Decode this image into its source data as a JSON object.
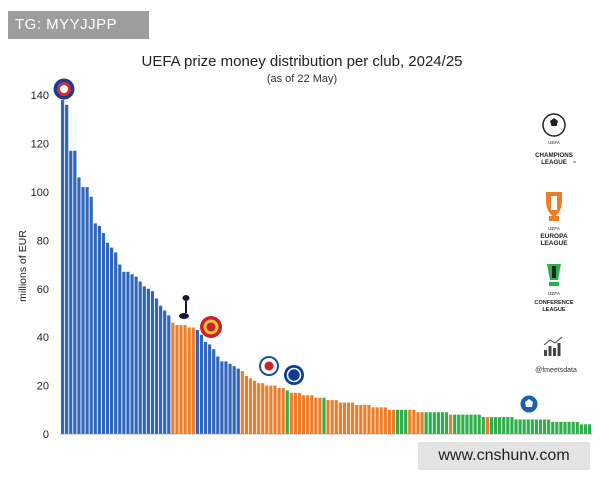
{
  "watermarks": {
    "top": "TG: MYYJJPP",
    "bottom": "www.cnshunv.com"
  },
  "legend": {
    "cl": {
      "top": "UEFA",
      "main": [
        "CHAMPIONS",
        "LEAGUE"
      ],
      "tm": "™",
      "color": "#2f66b9"
    },
    "el": {
      "top": "UEFA",
      "main": [
        "EUROPA",
        "LEAGUE"
      ],
      "color": "#ee7d2a"
    },
    "ecl": {
      "top": "UEFA",
      "main": [
        "CONFERENCE",
        "LEAGUE"
      ],
      "color": "#2fae4c"
    },
    "credit": "@fmeetsdata"
  },
  "club_markers": [
    "PSG",
    "Tottenham Hotspur",
    "Manchester United",
    "Viktoria Plzeň",
    "Chelsea",
    "Vitória SC"
  ],
  "chart_data": {
    "type": "bar",
    "title": "UEFA prize money distribution per club, 2024/25",
    "subtitle": "(as of 22 May)",
    "ylabel": "millions of EUR",
    "xlabel": "",
    "ylim": [
      0,
      145
    ],
    "yticks": [
      0,
      20,
      40,
      60,
      80,
      100,
      120,
      140
    ],
    "grid": false,
    "series": [
      {
        "name": "Champions League",
        "color": "#2f66b9",
        "values": [
          138,
          136,
          117,
          117,
          106,
          102,
          102,
          98,
          87,
          86,
          83,
          79,
          77,
          75,
          70,
          67,
          67,
          66,
          65,
          63,
          61,
          60,
          59,
          56,
          53,
          51,
          49
        ]
      },
      {
        "name": "Europa League",
        "color": "#ee7d2a",
        "values": [
          46,
          45,
          45,
          45,
          44,
          44
        ]
      },
      {
        "name": "Champions League",
        "color": "#2f66b9",
        "values": [
          43,
          41,
          38,
          37,
          35,
          32,
          30,
          30,
          29,
          28,
          27
        ]
      },
      {
        "name": "Europa League",
        "color": "#ee7d2a",
        "values": [
          26,
          24,
          23,
          22,
          21,
          21,
          20,
          20,
          20,
          19,
          19
        ]
      },
      {
        "name": "Conference League",
        "color": "#2fae4c",
        "values": [
          18
        ]
      },
      {
        "name": "Europa League",
        "color": "#ee7d2a",
        "values": [
          17,
          17,
          17,
          16,
          16,
          16,
          15,
          15
        ]
      },
      {
        "name": "Conference League",
        "color": "#2fae4c",
        "values": [
          15
        ]
      },
      {
        "name": "Europa League",
        "color": "#ee7d2a",
        "values": [
          14,
          14,
          14,
          13,
          13,
          13,
          13,
          12,
          12,
          12,
          12,
          11,
          11,
          11,
          11,
          10,
          10
        ]
      },
      {
        "name": "Conference League",
        "color": "#2fae4c",
        "values": [
          10,
          10,
          10
        ]
      },
      {
        "name": "Europa League",
        "color": "#ee7d2a",
        "values": [
          10,
          10,
          9,
          9
        ]
      },
      {
        "name": "Conference League",
        "color": "#2fae4c",
        "values": [
          9,
          9,
          9,
          9,
          9,
          9
        ]
      },
      {
        "name": "Europa League",
        "color": "#ee7d2a",
        "values": [
          8
        ]
      },
      {
        "name": "Conference League",
        "color": "#2fae4c",
        "values": [
          8,
          8,
          8,
          8,
          8,
          8,
          8,
          7
        ]
      },
      {
        "name": "Europa League",
        "color": "#ee7d2a",
        "values": [
          7
        ]
      },
      {
        "name": "Conference League",
        "color": "#2fae4c",
        "values": [
          7,
          7,
          7,
          7,
          7,
          7,
          6,
          6,
          6,
          6,
          6,
          6,
          6,
          6,
          6,
          5,
          5,
          5,
          5,
          5,
          5,
          5,
          4,
          4,
          4
        ]
      }
    ]
  }
}
